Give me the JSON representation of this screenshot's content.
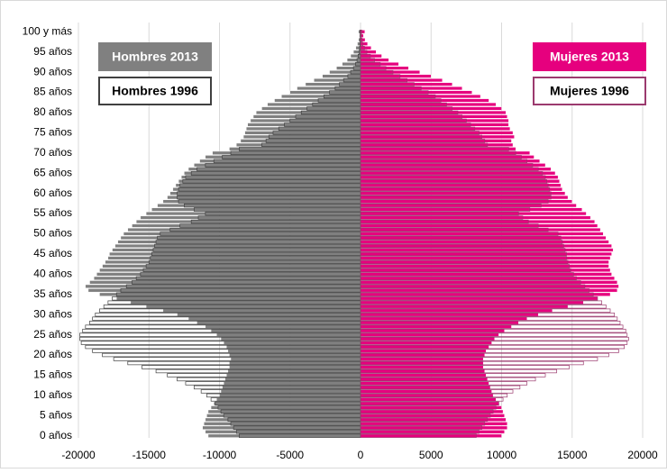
{
  "chart_data": {
    "type": "pyramid",
    "categories": [
      "0 años",
      null,
      null,
      null,
      null,
      "5 años",
      null,
      null,
      null,
      null,
      "10 años",
      null,
      null,
      null,
      null,
      "15 años",
      null,
      null,
      null,
      null,
      "20 años",
      null,
      null,
      null,
      null,
      "25 años",
      null,
      null,
      null,
      null,
      "30 años",
      null,
      null,
      null,
      null,
      "35 años",
      null,
      null,
      null,
      null,
      "40 años",
      null,
      null,
      null,
      null,
      "45 años",
      null,
      null,
      null,
      null,
      "50 años",
      null,
      null,
      null,
      null,
      "55 años",
      null,
      null,
      null,
      null,
      "60 años",
      null,
      null,
      null,
      null,
      "65 años",
      null,
      null,
      null,
      null,
      "70 años",
      null,
      null,
      null,
      null,
      "75 años",
      null,
      null,
      null,
      null,
      "80 años",
      null,
      null,
      null,
      null,
      "85 años",
      null,
      null,
      null,
      null,
      "90 años",
      null,
      null,
      null,
      null,
      "95 años",
      null,
      null,
      null,
      null,
      "100 y más"
    ],
    "series": [
      {
        "name": "Hombres 2013",
        "color": "#808080",
        "filled": true,
        "values": [
          -10800,
          -11000,
          -11200,
          -11100,
          -11000,
          -10900,
          -10800,
          -10600,
          -10400,
          -10200,
          -10000,
          -9900,
          -9800,
          -9700,
          -9600,
          -9500,
          -9400,
          -9300,
          -9300,
          -9200,
          -9300,
          -9400,
          -9500,
          -9700,
          -9900,
          -10200,
          -10600,
          -11000,
          -11600,
          -12200,
          -13000,
          -14000,
          -15200,
          -16300,
          -17300,
          -18500,
          -19300,
          -19500,
          -19200,
          -18900,
          -18700,
          -18500,
          -18300,
          -18100,
          -17900,
          -17800,
          -17600,
          -17400,
          -17200,
          -17000,
          -16800,
          -16500,
          -16200,
          -15900,
          -15600,
          -15200,
          -14800,
          -14400,
          -14000,
          -13700,
          -13500,
          -13300,
          -13100,
          -12900,
          -12700,
          -12500,
          -12200,
          -11800,
          -11400,
          -11000,
          -10500,
          -9300,
          -8800,
          -8500,
          -8300,
          -8200,
          -8100,
          -8000,
          -7800,
          -7600,
          -7400,
          -7000,
          -6600,
          -6100,
          -5600,
          -5000,
          -4500,
          -3900,
          -3300,
          -2700,
          -2200,
          -1700,
          -1300,
          -950,
          -700,
          -500,
          -330,
          -220,
          -140,
          -90,
          -150
        ]
      },
      {
        "name": "Hombres 1996",
        "color": "#404040",
        "filled": false,
        "values": [
          -8600,
          -8800,
          -9000,
          -9200,
          -9400,
          -9700,
          -9900,
          -10100,
          -10300,
          -10600,
          -10900,
          -11300,
          -11800,
          -12400,
          -13000,
          -13700,
          -14500,
          -15500,
          -16500,
          -17500,
          -18300,
          -19000,
          -19500,
          -19800,
          -19900,
          -19900,
          -19700,
          -19500,
          -19200,
          -19000,
          -18800,
          -18500,
          -18200,
          -17900,
          -17600,
          -17300,
          -17000,
          -16600,
          -16200,
          -15900,
          -15600,
          -15400,
          -15200,
          -15000,
          -14900,
          -14800,
          -14700,
          -14600,
          -14500,
          -14400,
          -14200,
          -13500,
          -12800,
          -12000,
          -11500,
          -11000,
          -11800,
          -12500,
          -12900,
          -13000,
          -13000,
          -12900,
          -12800,
          -12600,
          -12400,
          -12000,
          -11600,
          -11000,
          -10400,
          -9800,
          -9200,
          -8600,
          -7000,
          -6700,
          -6500,
          -6200,
          -5800,
          -5400,
          -5000,
          -4600,
          -4200,
          -3800,
          -3400,
          -3000,
          -2600,
          -2200,
          -1800,
          -1500,
          -1200,
          -900,
          -700,
          -500,
          -350,
          -250,
          -170,
          -110,
          -70,
          -50,
          -30,
          -20,
          -40
        ]
      },
      {
        "name": "Mujeres 2013",
        "color": "#e6007e",
        "filled": true,
        "values": [
          10000,
          10200,
          10400,
          10400,
          10300,
          10200,
          10100,
          10000,
          9800,
          9600,
          9400,
          9300,
          9200,
          9100,
          9000,
          8900,
          8800,
          8700,
          8700,
          8700,
          8800,
          8900,
          9100,
          9300,
          9500,
          9800,
          10200,
          10700,
          11200,
          11800,
          12600,
          13600,
          14700,
          15800,
          16800,
          17700,
          18200,
          18300,
          18200,
          18000,
          17800,
          17700,
          17600,
          17600,
          17700,
          17800,
          17900,
          17800,
          17600,
          17400,
          17200,
          17000,
          16800,
          16600,
          16300,
          16000,
          15700,
          15300,
          15000,
          14700,
          14500,
          14300,
          14200,
          14100,
          14000,
          13800,
          13500,
          13100,
          12700,
          12300,
          12000,
          11000,
          10800,
          10700,
          10900,
          10800,
          10600,
          10500,
          10500,
          10400,
          10300,
          10000,
          9600,
          9100,
          8500,
          7900,
          7200,
          6500,
          5800,
          5000,
          4200,
          3400,
          2700,
          2000,
          1500,
          1100,
          750,
          500,
          320,
          200,
          300
        ]
      },
      {
        "name": "Mujeres 1996",
        "color": "#9b3a6e",
        "filled": false,
        "values": [
          8200,
          8400,
          8600,
          8800,
          9000,
          9200,
          9400,
          9600,
          9800,
          10100,
          10400,
          10800,
          11300,
          11800,
          12400,
          13100,
          13900,
          14800,
          15800,
          16800,
          17600,
          18300,
          18700,
          18900,
          19000,
          18900,
          18800,
          18600,
          18400,
          18200,
          18000,
          17700,
          17400,
          17100,
          16800,
          16500,
          16200,
          15900,
          15600,
          15300,
          15100,
          14900,
          14800,
          14700,
          14600,
          14600,
          14500,
          14400,
          14300,
          14200,
          14000,
          13300,
          12600,
          11900,
          11500,
          11200,
          12000,
          12800,
          13300,
          13500,
          13500,
          13400,
          13300,
          13200,
          13100,
          12900,
          12600,
          12200,
          11800,
          11400,
          11000,
          10500,
          9000,
          8800,
          8600,
          8400,
          8100,
          7800,
          7500,
          7200,
          6900,
          6500,
          6100,
          5700,
          5300,
          4800,
          4300,
          3800,
          3300,
          2800,
          2300,
          1800,
          1400,
          1000,
          700,
          450,
          280,
          170,
          100,
          60,
          100
        ]
      }
    ],
    "xlim": [
      -20000,
      20000
    ],
    "xticks": [
      -20000,
      -15000,
      -10000,
      -5000,
      0,
      5000,
      10000,
      15000,
      20000
    ],
    "grid": true
  }
}
